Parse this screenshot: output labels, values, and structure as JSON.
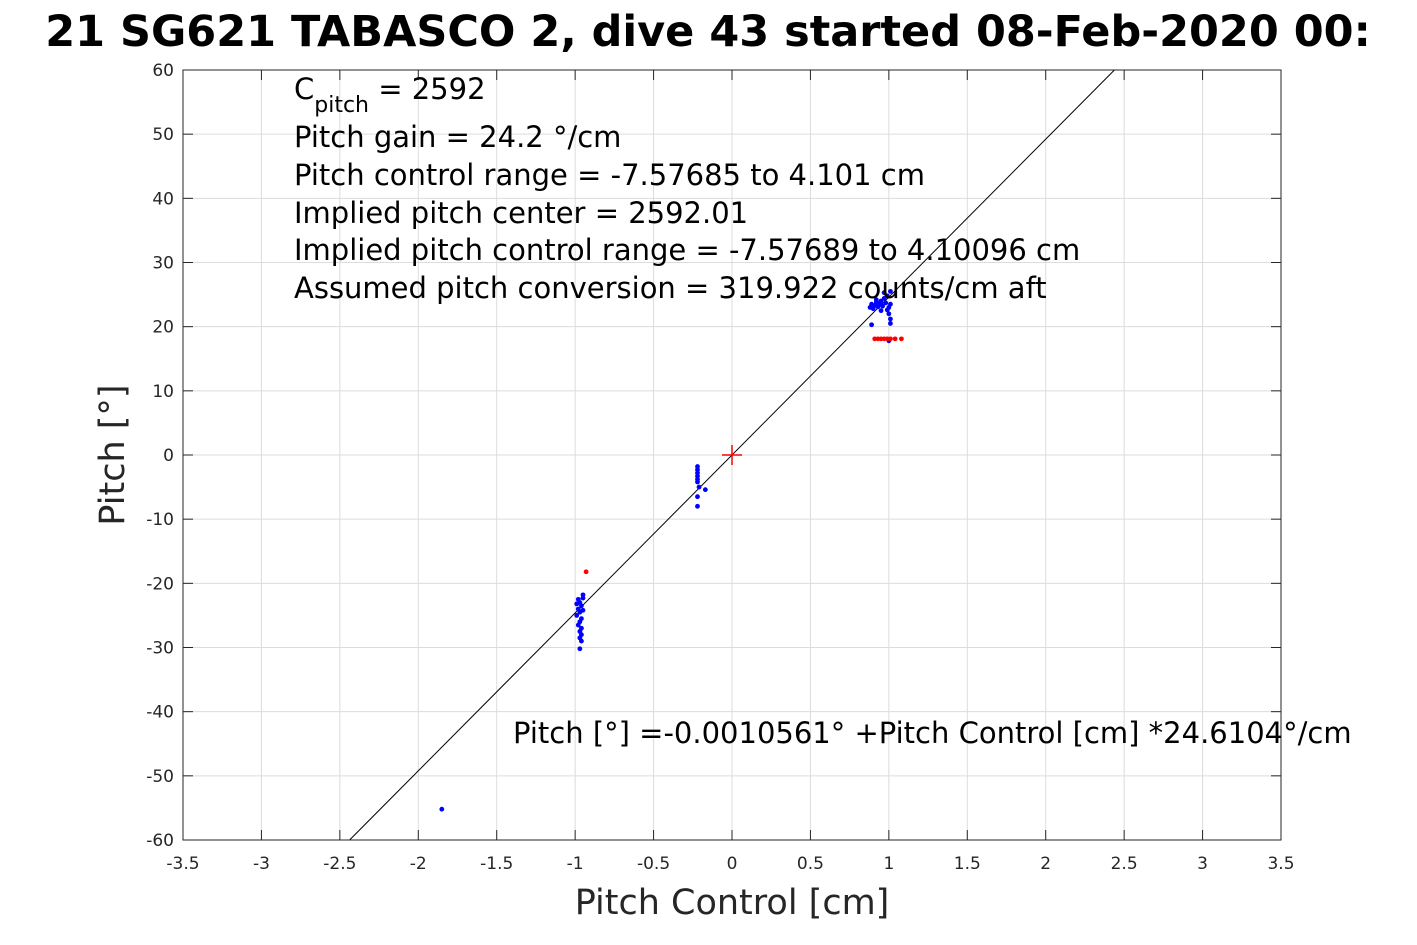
{
  "chart_data": {
    "type": "scatter",
    "title": "21 SG621 TABASCO 2, dive 43 started 08-Feb-2020 00:",
    "xlabel": "Pitch Control [cm]",
    "ylabel": "Pitch [°]",
    "xlim": [
      -3.5,
      3.5
    ],
    "ylim": [
      -60,
      60
    ],
    "xticks": [
      -3.5,
      -3,
      -2.5,
      -2,
      -1.5,
      -1,
      -0.5,
      0,
      0.5,
      1,
      1.5,
      2,
      2.5,
      3,
      3.5
    ],
    "yticks": [
      -60,
      -50,
      -40,
      -30,
      -20,
      -10,
      0,
      10,
      20,
      30,
      40,
      50,
      60
    ],
    "xtick_labels": [
      "-3.5",
      "-3",
      "-2.5",
      "-2",
      "-1.5",
      "-1",
      "-0.5",
      "0",
      "0.5",
      "1",
      "1.5",
      "2",
      "2.5",
      "3",
      "3.5"
    ],
    "ytick_labels": [
      "-60",
      "-50",
      "-40",
      "-30",
      "-20",
      "-10",
      "0",
      "10",
      "20",
      "30",
      "40",
      "50",
      "60"
    ],
    "grid": true,
    "annotations": {
      "c_pitch_symbol": "C",
      "c_pitch_subscript": "pitch",
      "c_pitch_value": " = 2592",
      "lines": [
        "Pitch gain = 24.2 °/cm",
        "Pitch control range = -7.57685 to 4.101 cm",
        "Implied pitch center = 2592.01",
        "Implied pitch control range = -7.57689 to 4.10096 cm",
        "Assumed pitch conversion = 319.922 counts/cm aft"
      ],
      "equation": "Pitch [°] =-0.0010561° +Pitch Control [cm] *24.6104°/cm"
    },
    "fit_line": {
      "intercept": -0.0010561,
      "slope": 24.6104,
      "color": "#000000"
    },
    "center_marker": {
      "x": 0,
      "y": 0,
      "color": "#ff0000"
    },
    "series": [
      {
        "color": "#0000ff",
        "points": [
          [
            -1.85,
            -55.2
          ],
          [
            -0.98,
            -22.5
          ],
          [
            -0.97,
            -23.0
          ],
          [
            -0.96,
            -23.5
          ],
          [
            -0.98,
            -24.0
          ],
          [
            -0.97,
            -24.5
          ],
          [
            -0.99,
            -25.0
          ],
          [
            -0.96,
            -25.5
          ],
          [
            -0.97,
            -26.0
          ],
          [
            -0.98,
            -26.5
          ],
          [
            -0.96,
            -27.0
          ],
          [
            -0.97,
            -27.5
          ],
          [
            -0.96,
            -28.0
          ],
          [
            -0.97,
            -28.5
          ],
          [
            -0.96,
            -29.0
          ],
          [
            -0.97,
            -30.2
          ],
          [
            -0.99,
            -23.2
          ],
          [
            -0.95,
            -24.2
          ],
          [
            -0.95,
            -22.3
          ],
          [
            -0.95,
            -21.8
          ],
          [
            -0.22,
            -1.8
          ],
          [
            -0.22,
            -2.3
          ],
          [
            -0.22,
            -2.8
          ],
          [
            -0.22,
            -3.3
          ],
          [
            -0.22,
            -3.8
          ],
          [
            -0.22,
            -4.2
          ],
          [
            -0.21,
            -5.0
          ],
          [
            -0.17,
            -5.4
          ],
          [
            -0.22,
            -6.5
          ],
          [
            -0.22,
            -8.0
          ],
          [
            0.88,
            23.0
          ],
          [
            0.89,
            23.5
          ],
          [
            0.9,
            22.8
          ],
          [
            0.91,
            23.3
          ],
          [
            0.92,
            23.8
          ],
          [
            0.93,
            23.1
          ],
          [
            0.94,
            23.6
          ],
          [
            0.95,
            24.0
          ],
          [
            0.96,
            23.2
          ],
          [
            0.97,
            24.4
          ],
          [
            0.98,
            23.7
          ],
          [
            0.99,
            24.8
          ],
          [
            1.0,
            23.0
          ],
          [
            1.0,
            22.0
          ],
          [
            1.01,
            21.2
          ],
          [
            1.01,
            20.5
          ],
          [
            0.97,
            25.3
          ],
          [
            0.89,
            20.3
          ],
          [
            1.01,
            25.5
          ],
          [
            1.0,
            17.8
          ],
          [
            0.95,
            22.5
          ],
          [
            0.92,
            24.2
          ],
          [
            1.01,
            23.5
          ],
          [
            0.99,
            22.6
          ]
        ]
      },
      {
        "color": "#ff0000",
        "points": [
          [
            -0.93,
            -18.2
          ],
          [
            0.93,
            18.1
          ],
          [
            0.95,
            18.1
          ],
          [
            0.97,
            18.1
          ],
          [
            0.99,
            18.1
          ],
          [
            1.01,
            18.1
          ],
          [
            1.04,
            18.1
          ],
          [
            1.08,
            18.1
          ],
          [
            0.91,
            18.1
          ]
        ]
      }
    ]
  }
}
